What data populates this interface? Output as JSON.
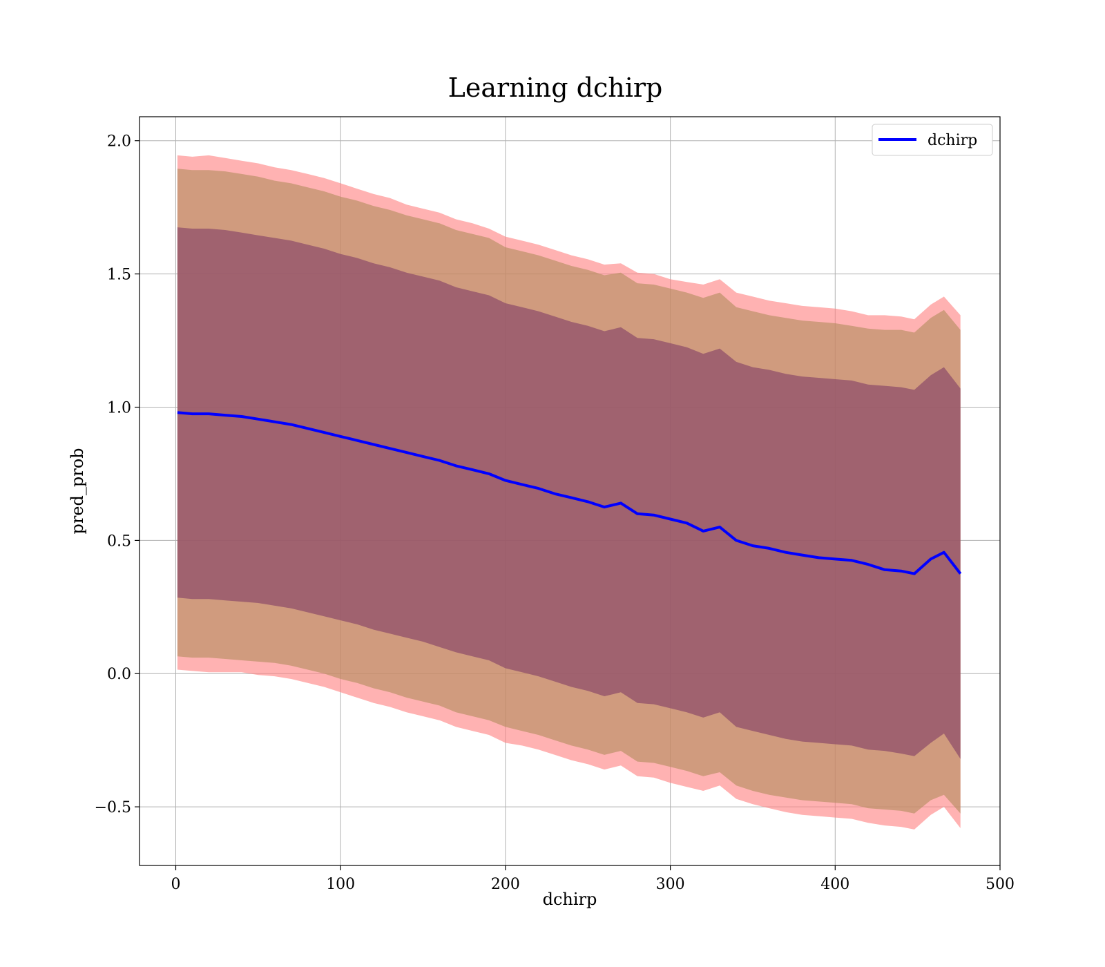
{
  "chart_data": {
    "type": "line",
    "title": "Learning dchirp",
    "xlabel": "dchirp",
    "ylabel": "pred_prob",
    "xlim": [
      -22,
      500
    ],
    "ylim": [
      -0.72,
      2.09
    ],
    "xticks": [
      0,
      100,
      200,
      300,
      400,
      500
    ],
    "yticks": [
      -0.5,
      0.0,
      0.5,
      1.0,
      1.5,
      2.0
    ],
    "xtick_labels": [
      "0",
      "100",
      "200",
      "300",
      "400",
      "500"
    ],
    "ytick_labels": [
      "−0.5",
      "0.0",
      "0.5",
      "1.0",
      "1.5",
      "2.0"
    ],
    "grid": true,
    "legend": {
      "position": "top-right",
      "entries": [
        "dchirp"
      ]
    },
    "colors": {
      "line": "#0000ff",
      "band_outer": "#ff7f7f",
      "band_middle": "#b08c5c",
      "band_inner": "#8b4a6a"
    },
    "series": [
      {
        "name": "dchirp",
        "x": [
          1,
          10,
          20,
          30,
          40,
          50,
          60,
          70,
          80,
          90,
          100,
          110,
          120,
          130,
          140,
          150,
          160,
          170,
          180,
          190,
          200,
          210,
          220,
          230,
          240,
          250,
          260,
          270,
          280,
          290,
          300,
          310,
          320,
          330,
          340,
          350,
          360,
          370,
          380,
          390,
          400,
          410,
          420,
          430,
          440,
          448,
          458,
          466,
          476
        ],
        "y": [
          0.98,
          0.975,
          0.975,
          0.97,
          0.965,
          0.955,
          0.945,
          0.935,
          0.92,
          0.905,
          0.89,
          0.875,
          0.86,
          0.845,
          0.83,
          0.815,
          0.8,
          0.78,
          0.765,
          0.75,
          0.725,
          0.71,
          0.695,
          0.675,
          0.66,
          0.645,
          0.625,
          0.64,
          0.6,
          0.595,
          0.58,
          0.565,
          0.535,
          0.55,
          0.5,
          0.48,
          0.47,
          0.455,
          0.445,
          0.435,
          0.43,
          0.425,
          0.41,
          0.39,
          0.385,
          0.375,
          0.43,
          0.455,
          0.375
        ]
      }
    ],
    "bands": [
      {
        "name": "outer",
        "x": [
          1,
          10,
          20,
          30,
          40,
          50,
          60,
          70,
          80,
          90,
          100,
          110,
          120,
          130,
          140,
          150,
          160,
          170,
          180,
          190,
          200,
          210,
          220,
          230,
          240,
          250,
          260,
          270,
          280,
          290,
          300,
          310,
          320,
          330,
          340,
          350,
          360,
          370,
          380,
          390,
          400,
          410,
          420,
          430,
          440,
          448,
          458,
          466,
          476
        ],
        "upper": [
          1.945,
          1.94,
          1.945,
          1.935,
          1.925,
          1.915,
          1.9,
          1.89,
          1.875,
          1.86,
          1.84,
          1.82,
          1.8,
          1.785,
          1.76,
          1.745,
          1.73,
          1.705,
          1.69,
          1.67,
          1.64,
          1.625,
          1.61,
          1.59,
          1.57,
          1.555,
          1.535,
          1.54,
          1.505,
          1.5,
          1.48,
          1.47,
          1.46,
          1.48,
          1.43,
          1.415,
          1.4,
          1.39,
          1.38,
          1.375,
          1.37,
          1.36,
          1.345,
          1.345,
          1.34,
          1.33,
          1.385,
          1.415,
          1.345
        ],
        "lower": [
          0.015,
          0.01,
          0.005,
          0.005,
          0.005,
          -0.005,
          -0.01,
          -0.02,
          -0.035,
          -0.05,
          -0.07,
          -0.09,
          -0.11,
          -0.125,
          -0.145,
          -0.16,
          -0.175,
          -0.2,
          -0.215,
          -0.23,
          -0.26,
          -0.27,
          -0.285,
          -0.305,
          -0.325,
          -0.34,
          -0.36,
          -0.345,
          -0.385,
          -0.39,
          -0.41,
          -0.425,
          -0.44,
          -0.42,
          -0.47,
          -0.49,
          -0.505,
          -0.52,
          -0.53,
          -0.535,
          -0.54,
          -0.545,
          -0.56,
          -0.57,
          -0.575,
          -0.585,
          -0.53,
          -0.5,
          -0.58
        ]
      },
      {
        "name": "middle",
        "x": [
          1,
          10,
          20,
          30,
          40,
          50,
          60,
          70,
          80,
          90,
          100,
          110,
          120,
          130,
          140,
          150,
          160,
          170,
          180,
          190,
          200,
          210,
          220,
          230,
          240,
          250,
          260,
          270,
          280,
          290,
          300,
          310,
          320,
          330,
          340,
          350,
          360,
          370,
          380,
          390,
          400,
          410,
          420,
          430,
          440,
          448,
          458,
          466,
          476
        ],
        "upper": [
          1.895,
          1.89,
          1.89,
          1.885,
          1.875,
          1.865,
          1.85,
          1.84,
          1.825,
          1.81,
          1.79,
          1.775,
          1.755,
          1.74,
          1.72,
          1.705,
          1.69,
          1.665,
          1.65,
          1.635,
          1.6,
          1.585,
          1.57,
          1.55,
          1.53,
          1.515,
          1.495,
          1.505,
          1.465,
          1.46,
          1.445,
          1.43,
          1.41,
          1.43,
          1.375,
          1.36,
          1.345,
          1.335,
          1.325,
          1.32,
          1.315,
          1.305,
          1.295,
          1.29,
          1.29,
          1.28,
          1.335,
          1.365,
          1.29
        ],
        "lower": [
          0.065,
          0.06,
          0.06,
          0.055,
          0.05,
          0.045,
          0.04,
          0.03,
          0.015,
          0.0,
          -0.02,
          -0.035,
          -0.055,
          -0.07,
          -0.09,
          -0.105,
          -0.12,
          -0.145,
          -0.16,
          -0.175,
          -0.2,
          -0.215,
          -0.23,
          -0.25,
          -0.27,
          -0.285,
          -0.305,
          -0.29,
          -0.33,
          -0.335,
          -0.35,
          -0.365,
          -0.385,
          -0.37,
          -0.42,
          -0.44,
          -0.455,
          -0.465,
          -0.475,
          -0.48,
          -0.485,
          -0.49,
          -0.505,
          -0.51,
          -0.515,
          -0.525,
          -0.475,
          -0.455,
          -0.525
        ]
      },
      {
        "name": "inner",
        "x": [
          1,
          10,
          20,
          30,
          40,
          50,
          60,
          70,
          80,
          90,
          100,
          110,
          120,
          130,
          140,
          150,
          160,
          170,
          180,
          190,
          200,
          210,
          220,
          230,
          240,
          250,
          260,
          270,
          280,
          290,
          300,
          310,
          320,
          330,
          340,
          350,
          360,
          370,
          380,
          390,
          400,
          410,
          420,
          430,
          440,
          448,
          458,
          466,
          476
        ],
        "upper": [
          1.675,
          1.67,
          1.67,
          1.665,
          1.655,
          1.645,
          1.635,
          1.625,
          1.61,
          1.595,
          1.575,
          1.56,
          1.54,
          1.525,
          1.505,
          1.49,
          1.475,
          1.45,
          1.435,
          1.42,
          1.39,
          1.375,
          1.36,
          1.34,
          1.32,
          1.305,
          1.285,
          1.3,
          1.26,
          1.255,
          1.24,
          1.225,
          1.2,
          1.22,
          1.17,
          1.15,
          1.14,
          1.125,
          1.115,
          1.11,
          1.105,
          1.1,
          1.085,
          1.08,
          1.075,
          1.065,
          1.12,
          1.15,
          1.07
        ],
        "lower": [
          0.285,
          0.28,
          0.28,
          0.275,
          0.27,
          0.265,
          0.255,
          0.245,
          0.23,
          0.215,
          0.2,
          0.185,
          0.165,
          0.15,
          0.135,
          0.12,
          0.1,
          0.08,
          0.065,
          0.05,
          0.02,
          0.005,
          -0.01,
          -0.03,
          -0.05,
          -0.065,
          -0.085,
          -0.07,
          -0.11,
          -0.115,
          -0.13,
          -0.145,
          -0.165,
          -0.145,
          -0.2,
          -0.215,
          -0.23,
          -0.245,
          -0.255,
          -0.26,
          -0.265,
          -0.27,
          -0.285,
          -0.29,
          -0.3,
          -0.31,
          -0.26,
          -0.225,
          -0.32
        ]
      }
    ]
  }
}
